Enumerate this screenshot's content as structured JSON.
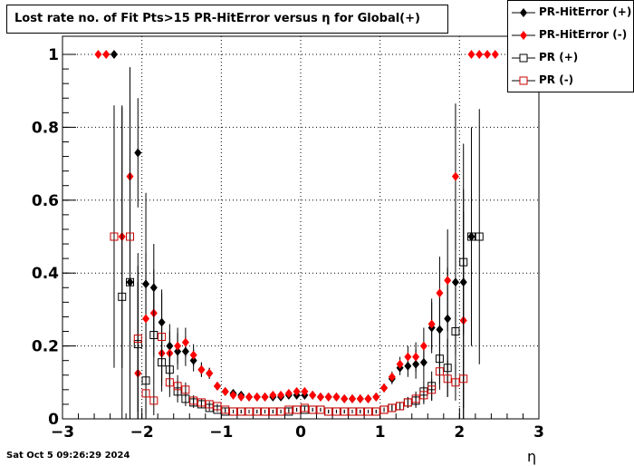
{
  "title": "Lost rate no. of Fit Pts>15 PR-HitError versus η for Global(+)",
  "timestamp": "Sat Oct  5 09:26:29 2024",
  "chart_data": {
    "type": "scatter",
    "title": "Lost rate no. of Fit Pts>15 PR-HitError versus η for Global(+)",
    "xlabel": "η",
    "ylabel": "",
    "xlim": [
      -3,
      3
    ],
    "ylim": [
      0,
      1.0
    ],
    "x_ticks": [
      "−3",
      "−2",
      "−1",
      "0",
      "1",
      "2",
      "3"
    ],
    "y_ticks": [
      "0",
      "0.2",
      "0.4",
      "0.6",
      "0.8",
      "1"
    ],
    "grid": true,
    "legend_position": "top-right",
    "series": [
      {
        "name": "PR-HitError (+)",
        "marker": "filled-diamond",
        "color": "#000000",
        "x": [
          -2.35,
          -2.15,
          -2.05,
          -1.95,
          -1.85,
          -1.75,
          -1.65,
          -1.55,
          -1.45,
          -1.35,
          -1.25,
          -1.15,
          -1.05,
          -0.95,
          -0.85,
          -0.75,
          -0.65,
          -0.55,
          -0.45,
          -0.35,
          -0.25,
          -0.15,
          -0.05,
          0.05,
          0.15,
          0.25,
          0.35,
          0.45,
          0.55,
          0.65,
          0.75,
          0.85,
          0.95,
          1.05,
          1.15,
          1.25,
          1.35,
          1.45,
          1.55,
          1.65,
          1.75,
          1.85,
          1.95,
          2.05,
          2.15
        ],
        "y": [
          1.0,
          0.375,
          0.73,
          0.37,
          0.36,
          0.265,
          0.2,
          0.185,
          0.185,
          0.16,
          0.135,
          0.125,
          0.09,
          0.075,
          0.07,
          0.065,
          0.06,
          0.06,
          0.06,
          0.06,
          0.06,
          0.065,
          0.065,
          0.065,
          0.065,
          0.06,
          0.06,
          0.06,
          0.055,
          0.055,
          0.055,
          0.055,
          0.06,
          0.085,
          0.11,
          0.14,
          0.145,
          0.15,
          0.155,
          0.25,
          0.245,
          0.275,
          0.375,
          0.375,
          0.5
        ],
        "errors": [
          0,
          0.5,
          0.15,
          0.25,
          0.12,
          0.09,
          0.06,
          0.05,
          0.04,
          0.03,
          0.02,
          0.015,
          0.01,
          0.008,
          0.007,
          0.006,
          0.006,
          0.006,
          0.006,
          0.006,
          0.006,
          0.006,
          0.006,
          0.006,
          0.006,
          0.006,
          0.006,
          0.006,
          0.006,
          0.006,
          0.006,
          0.006,
          0.008,
          0.012,
          0.015,
          0.02,
          0.03,
          0.04,
          0.05,
          0.07,
          0.1,
          0.14,
          0.2,
          0.38,
          0
        ]
      },
      {
        "name": "PR-HitError (-)",
        "marker": "filled-diamond",
        "color": "#ff0000",
        "x": [
          -2.55,
          -2.45,
          -2.25,
          -2.15,
          -2.05,
          -1.95,
          -1.85,
          -1.75,
          -1.65,
          -1.55,
          -1.45,
          -1.35,
          -1.25,
          -1.15,
          -1.05,
          -0.95,
          -0.85,
          -0.75,
          -0.65,
          -0.55,
          -0.45,
          -0.35,
          -0.25,
          -0.15,
          -0.05,
          0.05,
          0.15,
          0.25,
          0.35,
          0.45,
          0.55,
          0.65,
          0.75,
          0.85,
          0.95,
          1.05,
          1.15,
          1.25,
          1.35,
          1.45,
          1.55,
          1.65,
          1.75,
          1.85,
          1.95,
          2.05,
          2.15,
          2.25,
          2.35,
          2.45
        ],
        "y": [
          1.0,
          1.0,
          0.5,
          0.665,
          0.125,
          0.275,
          0.29,
          0.18,
          0.18,
          0.2,
          0.21,
          0.175,
          0.135,
          0.125,
          0.09,
          0.075,
          0.065,
          0.06,
          0.06,
          0.06,
          0.06,
          0.065,
          0.065,
          0.07,
          0.075,
          0.075,
          0.065,
          0.06,
          0.06,
          0.06,
          0.055,
          0.055,
          0.055,
          0.055,
          0.06,
          0.085,
          0.115,
          0.15,
          0.17,
          0.17,
          0.2,
          0.26,
          0.345,
          0.38,
          0.665,
          0.27,
          1.0,
          1.0,
          1.0,
          1.0
        ],
        "errors": [
          0,
          0,
          0.36,
          0.3,
          0.25,
          0.18,
          0.12,
          0.09,
          0.06,
          0.05,
          0.04,
          0.03,
          0.02,
          0.015,
          0.01,
          0.008,
          0.007,
          0.006,
          0.006,
          0.006,
          0.006,
          0.006,
          0.006,
          0.006,
          0.006,
          0.006,
          0.006,
          0.006,
          0.006,
          0.006,
          0.006,
          0.006,
          0.006,
          0.006,
          0.008,
          0.012,
          0.015,
          0.02,
          0.03,
          0.04,
          0.05,
          0.07,
          0.1,
          0.14,
          0.2,
          0.3,
          0,
          0,
          0,
          0
        ]
      },
      {
        "name": "PR (+)",
        "marker": "open-square",
        "color": "#000000",
        "x": [
          -2.25,
          -2.15,
          -2.05,
          -1.95,
          -1.85,
          -1.75,
          -1.65,
          -1.55,
          -1.45,
          -1.35,
          -1.25,
          -1.15,
          -1.05,
          -0.95,
          -0.85,
          -0.75,
          -0.65,
          -0.55,
          -0.45,
          -0.35,
          -0.25,
          -0.15,
          -0.05,
          0.05,
          0.15,
          0.25,
          0.35,
          0.45,
          0.55,
          0.65,
          0.75,
          0.85,
          0.95,
          1.05,
          1.15,
          1.25,
          1.35,
          1.45,
          1.55,
          1.65,
          1.75,
          1.85,
          1.95,
          2.05,
          2.15,
          2.25
        ],
        "y": [
          0.335,
          0.375,
          0.205,
          0.105,
          0.23,
          0.155,
          0.135,
          0.075,
          0.055,
          0.045,
          0.04,
          0.03,
          0.025,
          0.02,
          0.02,
          0.02,
          0.02,
          0.02,
          0.02,
          0.02,
          0.02,
          0.02,
          0.025,
          0.025,
          0.025,
          0.025,
          0.02,
          0.02,
          0.02,
          0.02,
          0.02,
          0.02,
          0.02,
          0.025,
          0.03,
          0.035,
          0.045,
          0.05,
          0.075,
          0.09,
          0.165,
          0.14,
          0.24,
          0.43,
          0.5,
          0.5
        ],
        "errors": [
          0.52,
          0.48,
          0.25,
          0.12,
          0.14,
          0.08,
          0.05,
          0.03,
          0.02,
          0.015,
          0.01,
          0.008,
          0.006,
          0.005,
          0.005,
          0.005,
          0.005,
          0.005,
          0.005,
          0.005,
          0.005,
          0.005,
          0.005,
          0.005,
          0.005,
          0.005,
          0.005,
          0.005,
          0.005,
          0.005,
          0.005,
          0.005,
          0.005,
          0.006,
          0.008,
          0.01,
          0.015,
          0.02,
          0.03,
          0.04,
          0.07,
          0.08,
          0.12,
          0.2,
          0.3,
          0.35
        ]
      },
      {
        "name": "PR (-)",
        "marker": "open-square",
        "color": "#cc0000",
        "x": [
          -2.35,
          -2.15,
          -2.05,
          -1.95,
          -1.85,
          -1.75,
          -1.65,
          -1.55,
          -1.45,
          -1.35,
          -1.25,
          -1.15,
          -1.05,
          -0.95,
          -0.85,
          -0.75,
          -0.65,
          -0.55,
          -0.45,
          -0.35,
          -0.25,
          -0.15,
          -0.05,
          0.05,
          0.15,
          0.25,
          0.35,
          0.45,
          0.55,
          0.65,
          0.75,
          0.85,
          0.95,
          1.05,
          1.15,
          1.25,
          1.35,
          1.45,
          1.55,
          1.65,
          1.75,
          1.85,
          1.95,
          2.05
        ],
        "y": [
          0.5,
          0.5,
          0.22,
          0.07,
          0.05,
          0.225,
          0.1,
          0.09,
          0.08,
          0.05,
          0.045,
          0.04,
          0.035,
          0.025,
          0.02,
          0.02,
          0.02,
          0.02,
          0.02,
          0.02,
          0.02,
          0.025,
          0.025,
          0.03,
          0.025,
          0.025,
          0.02,
          0.02,
          0.02,
          0.02,
          0.02,
          0.02,
          0.02,
          0.025,
          0.03,
          0.035,
          0.045,
          0.055,
          0.065,
          0.08,
          0.13,
          0.11,
          0.1,
          0.11
        ],
        "errors": [
          0.36,
          0.3,
          0.2,
          0.06,
          0.04,
          0.12,
          0.04,
          0.03,
          0.02,
          0.015,
          0.01,
          0.008,
          0.006,
          0.005,
          0.005,
          0.005,
          0.005,
          0.005,
          0.005,
          0.005,
          0.005,
          0.005,
          0.005,
          0.005,
          0.005,
          0.005,
          0.005,
          0.005,
          0.005,
          0.005,
          0.005,
          0.005,
          0.005,
          0.006,
          0.008,
          0.01,
          0.015,
          0.02,
          0.025,
          0.03,
          0.05,
          0.05,
          0.05,
          0.08
        ]
      }
    ]
  }
}
